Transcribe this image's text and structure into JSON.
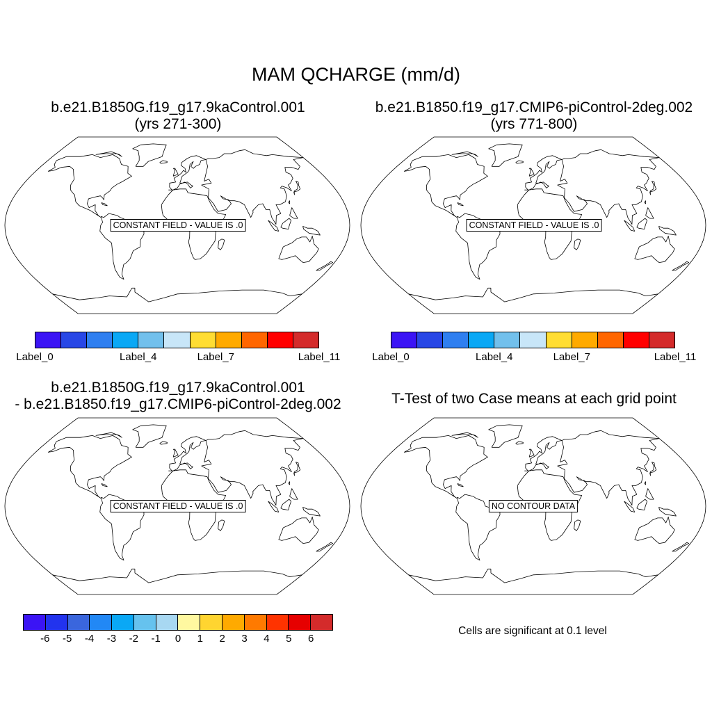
{
  "title": "MAM QCHARGE (mm/d)",
  "panels": [
    {
      "title_line1": "b.e21.B1850G.f19_g17.9kaControl.001",
      "title_line2": "(yrs 271-300)",
      "note": "CONSTANT FIELD - VALUE IS .0"
    },
    {
      "title_line1": "b.e21.B1850.f19_g17.CMIP6-piControl-2deg.002",
      "title_line2": "(yrs 771-800)",
      "note": "CONSTANT FIELD - VALUE IS .0"
    },
    {
      "title_line1": "b.e21.B1850G.f19_g17.9kaControl.001",
      "title_line2": "- b.e21.B1850.f19_g17.CMIP6-piControl-2deg.002",
      "note": "CONSTANT FIELD - VALUE IS .0"
    },
    {
      "title_line1": "T-Test of two Case means at each grid point",
      "title_line2": "",
      "note": "NO CONTOUR DATA"
    }
  ],
  "colorbar_top": {
    "colors": [
      "#3b14f5",
      "#2847e6",
      "#2f7ff0",
      "#0aa8f5",
      "#72c0ec",
      "#c8e6f8",
      "#ffdd33",
      "#ffaa00",
      "#ff6600",
      "#ff0000",
      "#d42b2b"
    ],
    "labels": [
      "Label_0",
      "Label_4",
      "Label_7",
      "Label_11"
    ],
    "label_box_index": [
      0,
      4,
      7,
      11
    ]
  },
  "colorbar_bottom": {
    "colors": [
      "#3b14f5",
      "#2233ee",
      "#3a66dd",
      "#2288f5",
      "#0aa8f5",
      "#66c2ee",
      "#a8d8f2",
      "#fff8a0",
      "#ffd530",
      "#ffaa00",
      "#ff7a00",
      "#ff3300",
      "#e60000",
      "#d42b2b"
    ],
    "labels": [
      "-6",
      "-5",
      "-4",
      "-3",
      "-2",
      "-1",
      "0",
      "1",
      "2",
      "3",
      "4",
      "5",
      "6"
    ]
  },
  "significance_note": "Cells are significant at 0.1 level"
}
